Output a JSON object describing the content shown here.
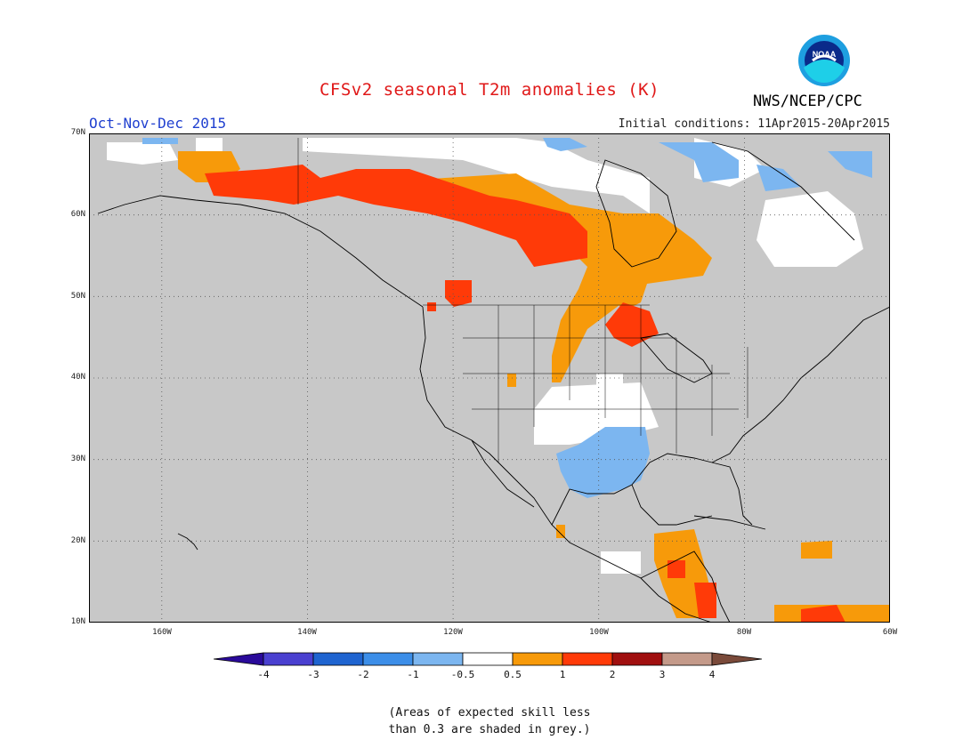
{
  "title": "CFSv2 seasonal T2m anomalies (K)",
  "season": "Oct-Nov-Dec 2015",
  "initial_conditions": "Initial conditions: 11Apr2015-20Apr2015",
  "org": "NWS/NCEP/CPC",
  "logo_text": "NOAA",
  "lat_labels": [
    "70N",
    "60N",
    "50N",
    "40N",
    "30N",
    "20N",
    "10N"
  ],
  "lon_labels": [
    "160W",
    "140W",
    "120W",
    "100W",
    "80W",
    "60W"
  ],
  "colorbar": {
    "ticks": [
      "-4",
      "-3",
      "-2",
      "-1",
      "-0.5",
      "0.5",
      "1",
      "2",
      "3",
      "4"
    ],
    "colors": [
      "#2a0a9a",
      "#4a40d0",
      "#1f64d0",
      "#3c8ee8",
      "#7cb6f0",
      "#ffffff",
      "#f79a0a",
      "#ff3a08",
      "#a00f0f",
      "#c49a8a",
      "#7a4a3a"
    ]
  },
  "note": [
    "(Areas of expected skill less",
    "than 0.3 are shaded in grey.)"
  ],
  "colors": {
    "grey_mask": "#c8c8c8",
    "title": "#e01818",
    "season": "#2040d0"
  }
}
